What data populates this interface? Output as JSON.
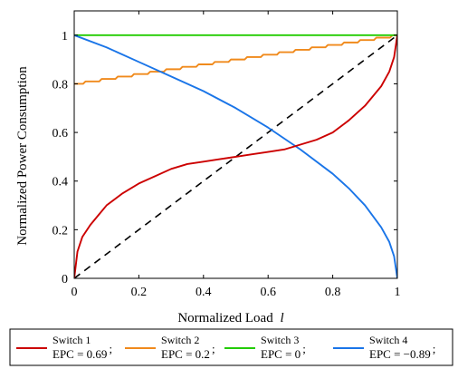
{
  "chart_data": {
    "type": "line",
    "xlabel": "Normalized Load",
    "xlabel_var": "l",
    "ylabel": "Normalized Power Consumption",
    "xlim": [
      0,
      1
    ],
    "ylim": [
      0,
      1.1
    ],
    "x_ticks": [
      "0",
      "0.2",
      "0.4",
      "0.6",
      "0.8",
      "1"
    ],
    "y_ticks": [
      "0",
      "0.2",
      "0.4",
      "0.6",
      "0.8",
      "1"
    ],
    "x_tick_values": [
      0,
      0.2,
      0.4,
      0.6,
      0.8,
      1
    ],
    "y_tick_values": [
      0,
      0.2,
      0.4,
      0.6,
      0.8,
      1
    ],
    "grid": false,
    "legend_position": "bottom",
    "series": [
      {
        "name": "Switch 1",
        "epc": "EPC = 0.69",
        "color": "#cc0000",
        "x": [
          0,
          0.01,
          0.025,
          0.05,
          0.075,
          0.1,
          0.15,
          0.2,
          0.25,
          0.3,
          0.35,
          0.4,
          0.45,
          0.5,
          0.55,
          0.6,
          0.65,
          0.7,
          0.75,
          0.8,
          0.85,
          0.9,
          0.925,
          0.95,
          0.975,
          0.99,
          1
        ],
        "y": [
          0,
          0.11,
          0.17,
          0.22,
          0.26,
          0.3,
          0.35,
          0.39,
          0.42,
          0.45,
          0.47,
          0.48,
          0.49,
          0.5,
          0.51,
          0.52,
          0.53,
          0.55,
          0.57,
          0.6,
          0.65,
          0.71,
          0.75,
          0.79,
          0.85,
          0.91,
          1
        ]
      },
      {
        "name": "Switch 2",
        "epc": "EPC = 0.2",
        "color": "#f08a1c",
        "x": [
          0,
          1
        ],
        "y": [
          0.8,
          1
        ],
        "steps": 20
      },
      {
        "name": "Switch 3",
        "epc": "EPC = 0",
        "color": "#22cc00",
        "x": [
          0,
          1
        ],
        "y": [
          1,
          1
        ]
      },
      {
        "name": "Switch 4",
        "epc": "EPC = −0.89",
        "color": "#1a75e8",
        "x": [
          0,
          0.1,
          0.2,
          0.3,
          0.4,
          0.5,
          0.6,
          0.7,
          0.8,
          0.85,
          0.9,
          0.95,
          0.975,
          0.99,
          1
        ],
        "y": [
          1,
          0.95,
          0.89,
          0.83,
          0.77,
          0.7,
          0.62,
          0.53,
          0.43,
          0.37,
          0.3,
          0.21,
          0.15,
          0.09,
          0
        ]
      }
    ],
    "reference": {
      "style": "dashed",
      "color": "#000000",
      "x": [
        0,
        1
      ],
      "y": [
        0,
        1
      ]
    }
  }
}
